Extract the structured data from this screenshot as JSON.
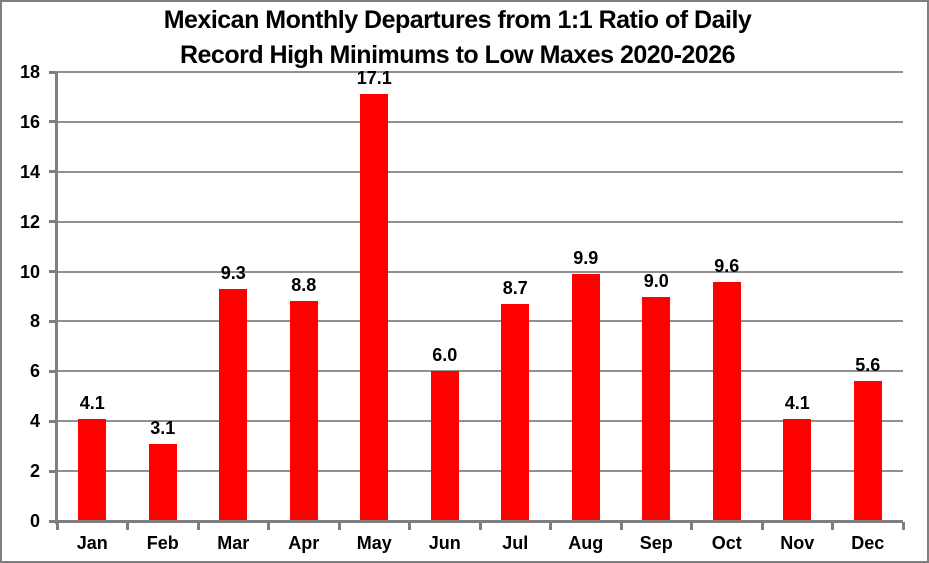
{
  "chart_data": {
    "type": "bar",
    "title": "Mexican Monthly Departures from 1:1 Ratio of Daily Record High Minimums to Low Maxes 2020-2026",
    "title_line1": "Mexican Monthly Departures from 1:1 Ratio of Daily",
    "title_line2": "Record High Minimums to Low Maxes 2020-2026",
    "categories": [
      "Jan",
      "Feb",
      "Mar",
      "Apr",
      "May",
      "Jun",
      "Jul",
      "Aug",
      "Sep",
      "Oct",
      "Nov",
      "Dec"
    ],
    "values": [
      4.1,
      3.1,
      9.3,
      8.8,
      17.1,
      6.0,
      8.7,
      9.9,
      9.0,
      9.6,
      4.1,
      5.6
    ],
    "value_labels": [
      "4.1",
      "3.1",
      "9.3",
      "8.8",
      "17.1",
      "6.0",
      "8.7",
      "9.9",
      "9.0",
      "9.6",
      "4.1",
      "5.6"
    ],
    "xlabel": "",
    "ylabel": "",
    "ylim": [
      0,
      18
    ],
    "yticks": [
      0,
      2,
      4,
      6,
      8,
      10,
      12,
      14,
      16,
      18
    ],
    "grid": true,
    "legend": false,
    "colors": {
      "bar": "#ff0000",
      "gridline": "#919191",
      "axis": "#7f7f7f",
      "text": "#000000",
      "background": "#ffffff",
      "frame_border": "#7f7f7f"
    }
  }
}
